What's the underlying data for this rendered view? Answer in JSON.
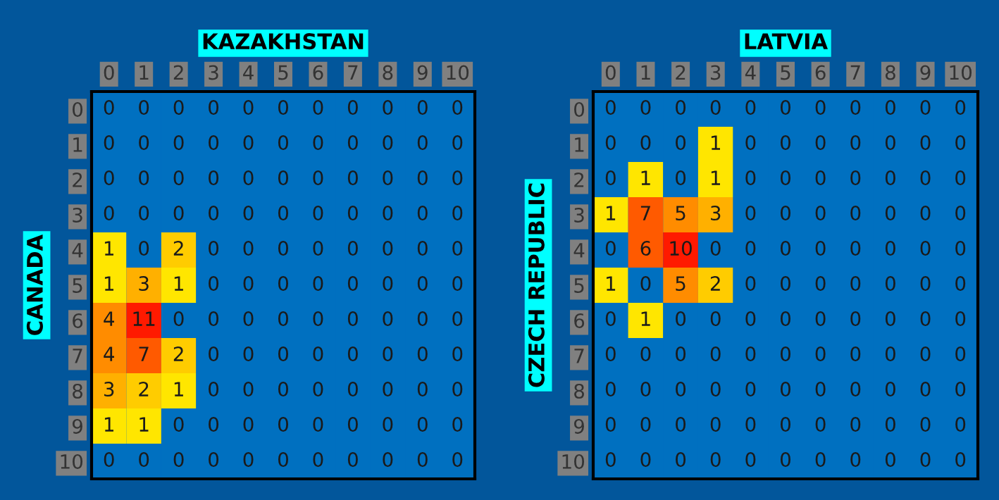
{
  "chart_data": [
    {
      "type": "heatmap",
      "xlabel": "KAZAKHSTAN",
      "ylabel": "CANADA",
      "data_labels": true,
      "categories": [
        "0",
        "1",
        "2",
        "3",
        "4",
        "5",
        "6",
        "7",
        "8",
        "9",
        "10"
      ],
      "y_categories": [
        "0",
        "1",
        "2",
        "3",
        "4",
        "5",
        "6",
        "7",
        "8",
        "9",
        "10"
      ],
      "cells": [
        [
          0,
          0,
          0,
          0,
          0,
          0,
          0,
          0,
          0,
          0,
          0
        ],
        [
          0,
          0,
          0,
          0,
          0,
          0,
          0,
          0,
          0,
          0,
          0
        ],
        [
          0,
          0,
          0,
          0,
          0,
          0,
          0,
          0,
          0,
          0,
          0
        ],
        [
          0,
          0,
          0,
          0,
          0,
          0,
          0,
          0,
          0,
          0,
          0
        ],
        [
          1,
          0,
          2,
          0,
          0,
          0,
          0,
          0,
          0,
          0,
          0
        ],
        [
          1,
          3,
          1,
          0,
          0,
          0,
          0,
          0,
          0,
          0,
          0
        ],
        [
          4,
          11,
          0,
          0,
          0,
          0,
          0,
          0,
          0,
          0,
          0
        ],
        [
          4,
          7,
          2,
          0,
          0,
          0,
          0,
          0,
          0,
          0,
          0
        ],
        [
          3,
          2,
          1,
          0,
          0,
          0,
          0,
          0,
          0,
          0,
          0
        ],
        [
          1,
          1,
          0,
          0,
          0,
          0,
          0,
          0,
          0,
          0,
          0
        ],
        [
          0,
          0,
          0,
          0,
          0,
          0,
          0,
          0,
          0,
          0,
          0
        ]
      ]
    },
    {
      "type": "heatmap",
      "xlabel": "LATVIA",
      "ylabel": "CZECH REPUBLIC",
      "data_labels": true,
      "categories": [
        "0",
        "1",
        "2",
        "3",
        "4",
        "5",
        "6",
        "7",
        "8",
        "9",
        "10"
      ],
      "y_categories": [
        "0",
        "1",
        "2",
        "3",
        "4",
        "5",
        "6",
        "7",
        "8",
        "9",
        "10"
      ],
      "cells": [
        [
          0,
          0,
          0,
          0,
          0,
          0,
          0,
          0,
          0,
          0,
          0
        ],
        [
          0,
          0,
          0,
          1,
          0,
          0,
          0,
          0,
          0,
          0,
          0
        ],
        [
          0,
          1,
          0,
          1,
          0,
          0,
          0,
          0,
          0,
          0,
          0
        ],
        [
          1,
          7,
          5,
          3,
          0,
          0,
          0,
          0,
          0,
          0,
          0
        ],
        [
          0,
          6,
          10,
          0,
          0,
          0,
          0,
          0,
          0,
          0,
          0
        ],
        [
          1,
          0,
          5,
          2,
          0,
          0,
          0,
          0,
          0,
          0,
          0
        ],
        [
          0,
          1,
          0,
          0,
          0,
          0,
          0,
          0,
          0,
          0,
          0
        ],
        [
          0,
          0,
          0,
          0,
          0,
          0,
          0,
          0,
          0,
          0,
          0
        ],
        [
          0,
          0,
          0,
          0,
          0,
          0,
          0,
          0,
          0,
          0,
          0
        ],
        [
          0,
          0,
          0,
          0,
          0,
          0,
          0,
          0,
          0,
          0,
          0
        ],
        [
          0,
          0,
          0,
          0,
          0,
          0,
          0,
          0,
          0,
          0,
          0
        ]
      ]
    }
  ]
}
